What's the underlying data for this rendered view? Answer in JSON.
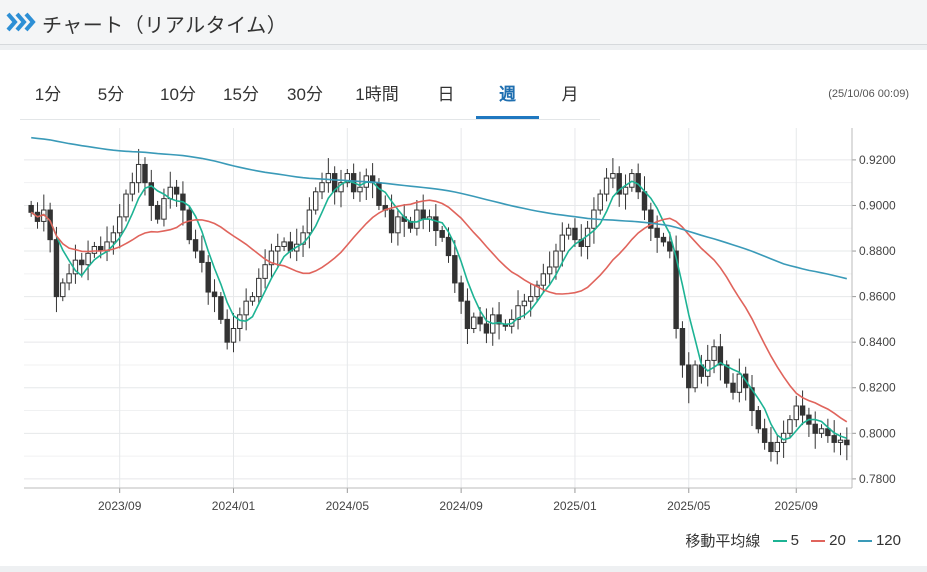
{
  "header": {
    "title": "チャート（リアルタイム）",
    "icon": "double-chevron-icon"
  },
  "tabs": [
    {
      "label": "1分",
      "active": false
    },
    {
      "label": "5分",
      "active": false
    },
    {
      "label": "10分",
      "active": false
    },
    {
      "label": "15分",
      "active": false
    },
    {
      "label": "30分",
      "active": false
    },
    {
      "label": "1時間",
      "active": false
    },
    {
      "label": "日",
      "active": false
    },
    {
      "label": "週",
      "active": true
    },
    {
      "label": "月",
      "active": false
    }
  ],
  "timestamp": "(25/10/06 00:09)",
  "legend": {
    "label": "移動平均線",
    "items": [
      {
        "label": "5",
        "color": "#1db394"
      },
      {
        "label": "20",
        "color": "#e0645c"
      },
      {
        "label": "120",
        "color": "#3a9ab8"
      }
    ]
  },
  "colors": {
    "up": "#ffffff",
    "down": "#333333",
    "ma5": "#1db394",
    "ma20": "#e0645c",
    "ma120": "#3a9ab8",
    "accent": "#1f78c0"
  },
  "chart_data": {
    "type": "candlestick",
    "title": "",
    "ylim": [
      0.776,
      0.934
    ],
    "yticks": [
      "0.9200",
      "0.9000",
      "0.8800",
      "0.8600",
      "0.8400",
      "0.8200",
      "0.8000",
      "0.7800"
    ],
    "xticks": [
      {
        "label": "2023/09",
        "index": 14
      },
      {
        "label": "2024/01",
        "index": 32
      },
      {
        "label": "2024/05",
        "index": 50
      },
      {
        "label": "2024/09",
        "index": 68
      },
      {
        "label": "2025/01",
        "index": 86
      },
      {
        "label": "2025/05",
        "index": 104
      },
      {
        "label": "2025/09",
        "index": 121
      }
    ],
    "grid": true,
    "closes": [
      0.897,
      0.893,
      0.898,
      0.885,
      0.86,
      0.866,
      0.87,
      0.876,
      0.874,
      0.879,
      0.882,
      0.88,
      0.884,
      0.888,
      0.895,
      0.905,
      0.91,
      0.918,
      0.91,
      0.9,
      0.894,
      0.903,
      0.908,
      0.905,
      0.898,
      0.885,
      0.88,
      0.875,
      0.862,
      0.86,
      0.85,
      0.84,
      0.846,
      0.852,
      0.858,
      0.86,
      0.868,
      0.874,
      0.88,
      0.882,
      0.884,
      0.88,
      0.883,
      0.888,
      0.898,
      0.906,
      0.91,
      0.914,
      0.906,
      0.91,
      0.914,
      0.906,
      0.908,
      0.913,
      0.91,
      0.9,
      0.898,
      0.888,
      0.895,
      0.893,
      0.89,
      0.898,
      0.894,
      0.895,
      0.889,
      0.886,
      0.878,
      0.866,
      0.858,
      0.846,
      0.851,
      0.848,
      0.844,
      0.852,
      0.848,
      0.847,
      0.85,
      0.856,
      0.858,
      0.86,
      0.865,
      0.87,
      0.873,
      0.88,
      0.887,
      0.89,
      0.885,
      0.882,
      0.89,
      0.898,
      0.905,
      0.912,
      0.914,
      0.905,
      0.908,
      0.914,
      0.906,
      0.898,
      0.89,
      0.886,
      0.884,
      0.88,
      0.846,
      0.83,
      0.82,
      0.83,
      0.825,
      0.832,
      0.838,
      0.83,
      0.822,
      0.818,
      0.826,
      0.82,
      0.81,
      0.802,
      0.796,
      0.792,
      0.796,
      0.8,
      0.806,
      0.812,
      0.808,
      0.804,
      0.8,
      0.802,
      0.799,
      0.796,
      0.797,
      0.795
    ],
    "series": [
      {
        "name": "5",
        "ma": 5
      },
      {
        "name": "20",
        "ma": 20
      },
      {
        "name": "120",
        "ma": 120
      }
    ]
  }
}
